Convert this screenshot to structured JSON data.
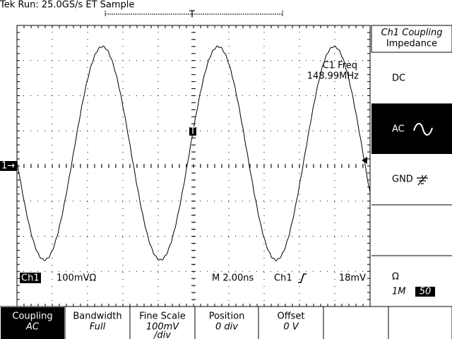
{
  "status": {
    "text": "Tek Run: 25.0GS/s ET Sample",
    "trigger_marker": "T"
  },
  "screen": {
    "channel_marker": "1→",
    "trigger_point": "T",
    "freq_label": "C1 Freq",
    "freq_value": "148.99MHz"
  },
  "readout": {
    "channel": "Ch1",
    "scale": "100mVΩ",
    "timebase": "M 2.00ns",
    "trigger_channel": "Ch1",
    "trigger_level": "18mV"
  },
  "side_menu": {
    "title": "Ch1 Coupling",
    "subtitle": "Impedance",
    "items": [
      "DC",
      "AC",
      "GND",
      "Ω"
    ],
    "impedance": "1M",
    "impedance_alt": "50"
  },
  "bottom_menu": [
    {
      "label": "Coupling",
      "value": "AC"
    },
    {
      "label": "Bandwidth",
      "value": "Full"
    },
    {
      "label": "Fine Scale",
      "value": "100mV",
      "value2": "/div"
    },
    {
      "label": "Position",
      "value": "0 div"
    },
    {
      "label": "Offset",
      "value": "0 V"
    }
  ]
}
